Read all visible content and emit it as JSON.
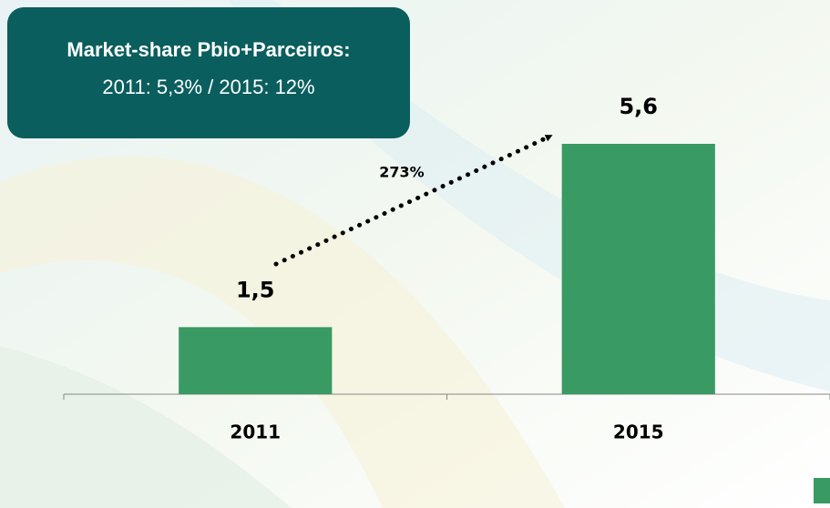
{
  "chart_data": {
    "type": "bar",
    "title": "Market-share Pbio+Parceiros:",
    "subtitle": "2011: 5,3% / 2015: 12%",
    "annotation": "273%",
    "categories": [
      "2011",
      "2015"
    ],
    "values": [
      1.5,
      5.6
    ],
    "value_labels": [
      "1,5",
      "5,6"
    ],
    "color": "#3a9a64"
  }
}
